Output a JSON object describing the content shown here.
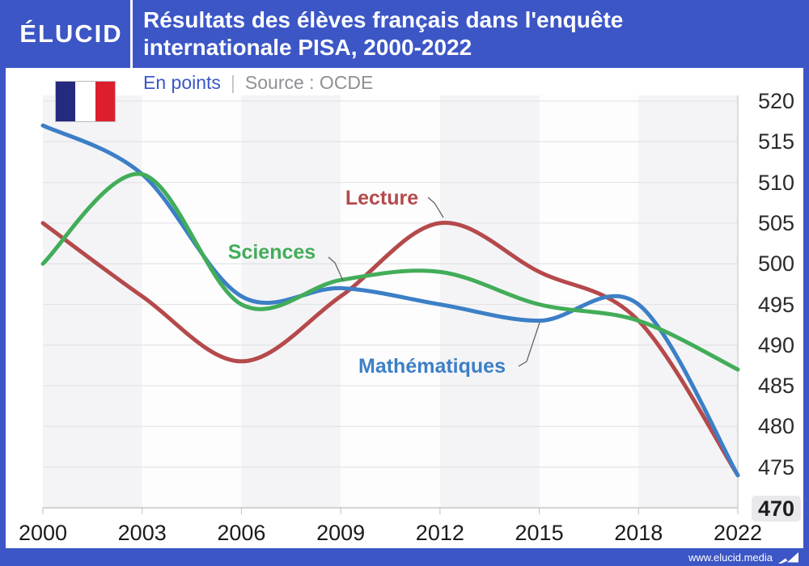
{
  "header": {
    "logo": "ÉLUCID",
    "title_line1": "Résultats des élèves français dans l'enquête",
    "title_line2": "internationale PISA, 2000-2022"
  },
  "subtitle": {
    "unit": "En points",
    "separator": "|",
    "source": "Source : OCDE"
  },
  "footer": {
    "url": "www.elucid.media"
  },
  "colors": {
    "brand_blue": "#3c56c6",
    "lecture_red": "#b5494b",
    "sciences_green": "#42ad59",
    "mathematiques_blue": "#3c7fc6",
    "gridline": "#e5e5e8",
    "axis": "#c7c7cb",
    "band_gray": "#f4f4f6",
    "band_white": "#fdfdfe",
    "flag_blue": "#242b7f",
    "flag_red": "#dd1f2d",
    "ytick_highlight_bg": "#e9e9eb",
    "leader_line": "#5a5b5e"
  },
  "chart_data": {
    "type": "line",
    "title": "Résultats des élèves français dans l'enquête internationale PISA, 2000-2022",
    "unit": "En points",
    "source": "OCDE",
    "categories": [
      "2000",
      "2003",
      "2006",
      "2009",
      "2012",
      "2015",
      "2018",
      "2022"
    ],
    "series": [
      {
        "name": "Lecture",
        "color": "#b5494b",
        "values": [
          505,
          496,
          488,
          496,
          505,
          499,
          493,
          474
        ]
      },
      {
        "name": "Sciences",
        "color": "#42ad59",
        "values": [
          500,
          511,
          495,
          498,
          499,
          495,
          493,
          487
        ]
      },
      {
        "name": "Mathématiques",
        "color": "#3c7fc6",
        "values": [
          517,
          511,
          496,
          497,
          495,
          493,
          495,
          474
        ]
      }
    ],
    "ylim": [
      470,
      520
    ],
    "yticks": [
      520,
      515,
      510,
      505,
      500,
      495,
      490,
      485,
      480,
      475,
      470
    ],
    "highlighted_ytick": 470,
    "grid": true,
    "background_bands": "alternating-vertical",
    "curve_style": "smoothed-spline",
    "legend_position": "inline-labels",
    "draw_order": [
      "Lecture",
      "Mathématiques",
      "Sciences"
    ]
  }
}
